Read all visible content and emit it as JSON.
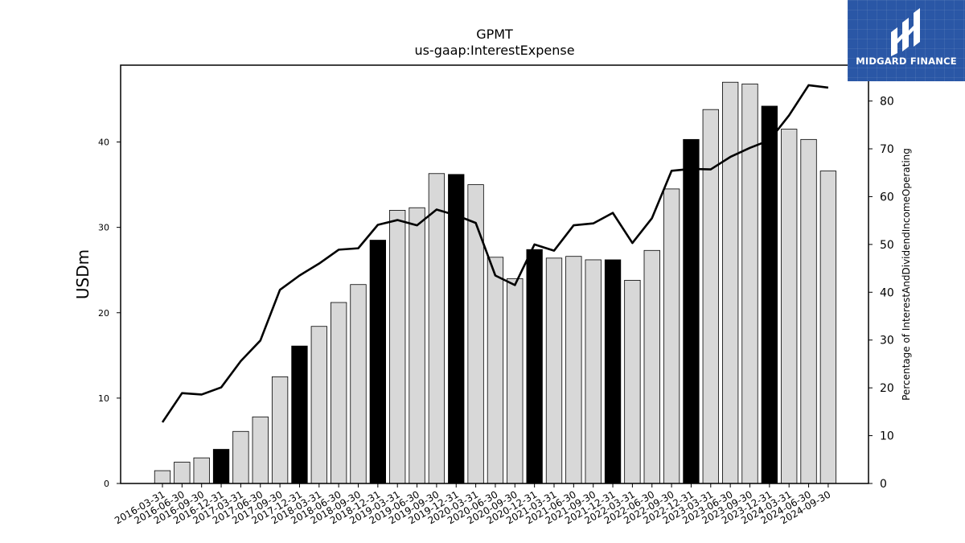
{
  "chart_data": {
    "type": "bar",
    "title": "GPMT",
    "subtitle": "us-gaap:InterestExpense",
    "ylabel": "USDm",
    "y2label": "Percentage of InterestAndDividendIncomeOperating",
    "ylim": [
      0,
      49
    ],
    "y2lim": [
      0,
      87.5
    ],
    "yticks": [
      0,
      10,
      20,
      30,
      40
    ],
    "y2ticks": [
      0,
      10,
      20,
      30,
      40,
      50,
      60,
      70,
      80
    ],
    "categories": [
      "2016-03-31",
      "2016-06-30",
      "2016-09-30",
      "2016-12-31",
      "2017-03-31",
      "2017-06-30",
      "2017-09-30",
      "2017-12-31",
      "2018-03-31",
      "2018-06-30",
      "2018-09-30",
      "2018-12-31",
      "2019-03-31",
      "2019-06-30",
      "2019-09-30",
      "2019-12-31",
      "2020-03-31",
      "2020-06-30",
      "2020-09-30",
      "2020-12-31",
      "2021-03-31",
      "2021-06-30",
      "2021-09-30",
      "2021-12-31",
      "2022-03-31",
      "2022-06-30",
      "2022-09-30",
      "2022-12-31",
      "2023-03-31",
      "2023-06-30",
      "2023-09-30",
      "2023-12-31",
      "2024-03-31",
      "2024-06-30",
      "2024-09-30"
    ],
    "series": [
      {
        "type": "bar",
        "values": [
          1.5,
          2.5,
          3.0,
          4.0,
          6.1,
          7.8,
          12.5,
          16.1,
          18.4,
          21.2,
          23.3,
          28.5,
          32.0,
          32.3,
          36.3,
          36.2,
          35.0,
          26.5,
          24.0,
          27.4,
          26.4,
          26.6,
          26.2,
          26.2,
          23.8,
          27.3,
          34.5,
          40.3,
          43.8,
          47.0,
          46.8,
          44.2,
          41.5,
          40.3,
          36.6
        ],
        "highlight_months": [
          "12"
        ],
        "color": "#d8d8d8",
        "highlight_color": "#000000"
      },
      {
        "type": "line",
        "axis": "right",
        "values": [
          12.8,
          18.9,
          18.6,
          20.1,
          25.6,
          29.9,
          40.5,
          43.5,
          46.0,
          48.9,
          49.2,
          54.1,
          55.1,
          54.0,
          57.3,
          56.1,
          54.5,
          43.5,
          41.5,
          50.0,
          48.7,
          54.0,
          54.4,
          56.6,
          50.3,
          55.5,
          65.4,
          65.8,
          65.7,
          68.3,
          70.2,
          71.8,
          77.0,
          83.3,
          82.8
        ],
        "color": "#000000"
      }
    ]
  },
  "logo": {
    "text": "MIDGARD FINANCE",
    "color": "#2a57a6"
  }
}
